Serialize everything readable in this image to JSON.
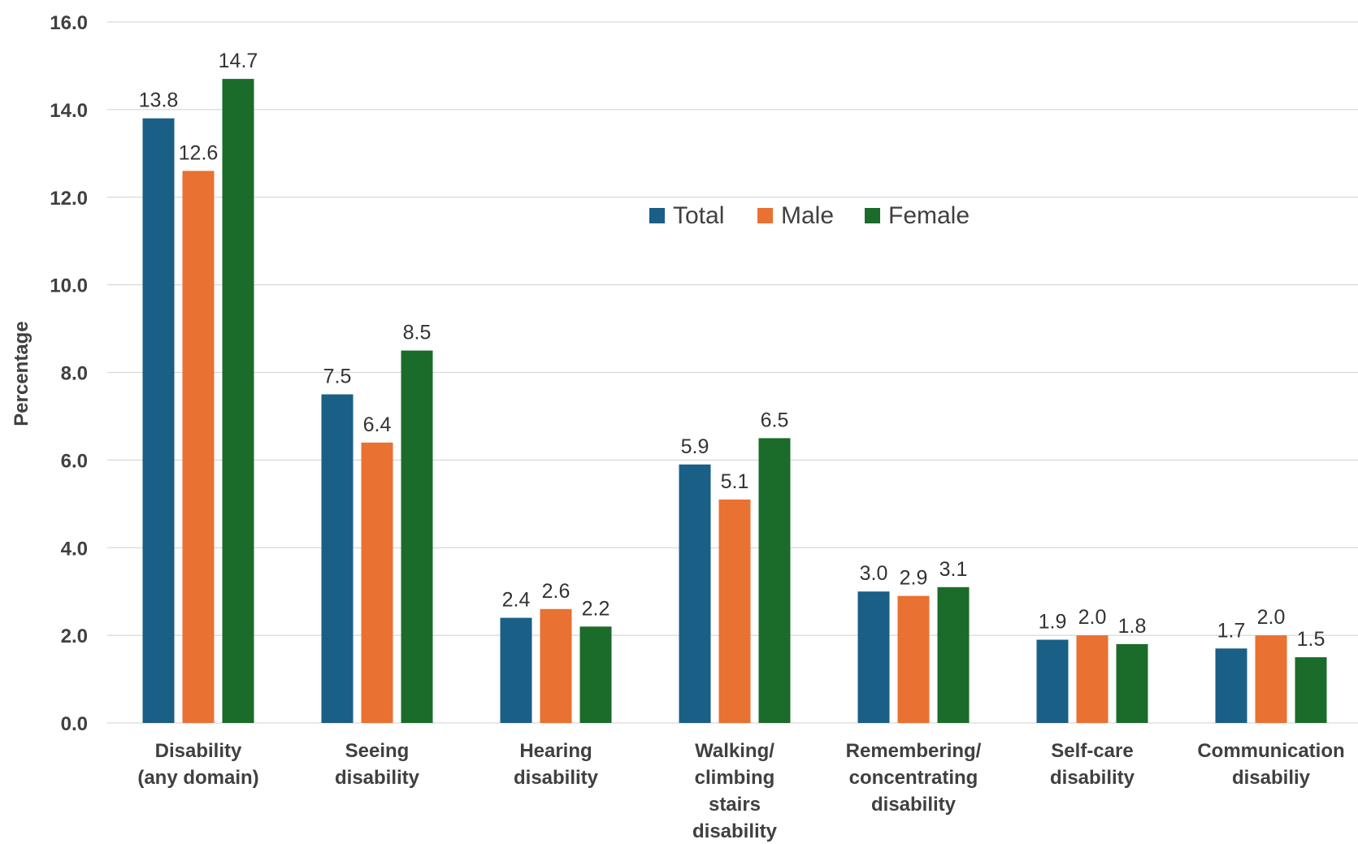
{
  "chart_data": {
    "type": "bar",
    "ylabel": "Percentage",
    "ylim": [
      0,
      16
    ],
    "yticks": [
      "0.0",
      "2.0",
      "4.0",
      "6.0",
      "8.0",
      "10.0",
      "12.0",
      "14.0",
      "16.0"
    ],
    "grid": true,
    "legend_position": "top-center",
    "categories": [
      [
        "Disability",
        "(any domain)"
      ],
      [
        "Seeing",
        "disability"
      ],
      [
        "Hearing",
        "disability"
      ],
      [
        "Walking/",
        "climbing",
        "stairs",
        "disability"
      ],
      [
        "Remembering/",
        "concentrating",
        "disability"
      ],
      [
        "Self-care",
        "disability"
      ],
      [
        "Communication",
        "disabiliy"
      ]
    ],
    "series": [
      {
        "name": "Total",
        "color": "#1a5f85",
        "values": [
          13.8,
          7.5,
          2.4,
          5.9,
          3.0,
          1.9,
          1.7
        ],
        "labels": [
          "13.8",
          "7.5",
          "2.4",
          "5.9",
          "3.0",
          "1.9",
          "1.7"
        ]
      },
      {
        "name": "Male",
        "color": "#e97132",
        "values": [
          12.6,
          6.4,
          2.6,
          5.1,
          2.9,
          2.0,
          2.0
        ],
        "labels": [
          "12.6",
          "6.4",
          "2.6",
          "5.1",
          "2.9",
          "2.0",
          "2.0"
        ]
      },
      {
        "name": "Female",
        "color": "#1b6b2a",
        "values": [
          14.7,
          8.5,
          2.2,
          6.5,
          3.1,
          1.8,
          1.5
        ],
        "labels": [
          "14.7",
          "8.5",
          "2.2",
          "6.5",
          "3.1",
          "1.8",
          "1.5"
        ]
      }
    ]
  }
}
